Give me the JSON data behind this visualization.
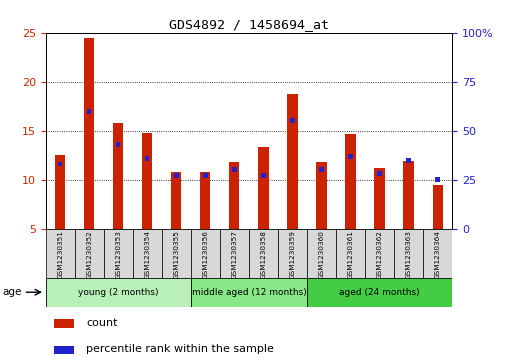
{
  "title": "GDS4892 / 1458694_at",
  "samples": [
    "GSM1230351",
    "GSM1230352",
    "GSM1230353",
    "GSM1230354",
    "GSM1230355",
    "GSM1230356",
    "GSM1230357",
    "GSM1230358",
    "GSM1230359",
    "GSM1230360",
    "GSM1230361",
    "GSM1230362",
    "GSM1230363",
    "GSM1230364"
  ],
  "counts": [
    12.5,
    24.5,
    15.8,
    14.8,
    10.8,
    10.8,
    11.8,
    13.3,
    18.7,
    11.8,
    14.7,
    11.2,
    11.9,
    9.5
  ],
  "percentiles": [
    33,
    60,
    43,
    36,
    27,
    27,
    30,
    27,
    55,
    30,
    37,
    28,
    35,
    25
  ],
  "ylim_left": [
    5,
    25
  ],
  "ylim_right": [
    0,
    100
  ],
  "yticks_left": [
    5,
    10,
    15,
    20,
    25
  ],
  "yticks_right": [
    0,
    25,
    50,
    75,
    100
  ],
  "ytick_labels_right": [
    "0",
    "25",
    "50",
    "75",
    "100%"
  ],
  "bar_color": "#cc2200",
  "percentile_color": "#2222cc",
  "groups": [
    {
      "label": "young (2 months)",
      "start": 0,
      "end": 5
    },
    {
      "label": "middle aged (12 months)",
      "start": 5,
      "end": 9
    },
    {
      "label": "aged (24 months)",
      "start": 9,
      "end": 14
    }
  ],
  "group_colors": [
    "#b8f0b8",
    "#88e888",
    "#44cc44"
  ],
  "legend_count_label": "count",
  "legend_pct_label": "percentile rank within the sample",
  "age_label": "age",
  "tick_color_left": "#cc2200",
  "tick_color_right": "#2222cc",
  "bar_width": 0.35,
  "percentile_bar_width": 0.15,
  "ymin": 5
}
